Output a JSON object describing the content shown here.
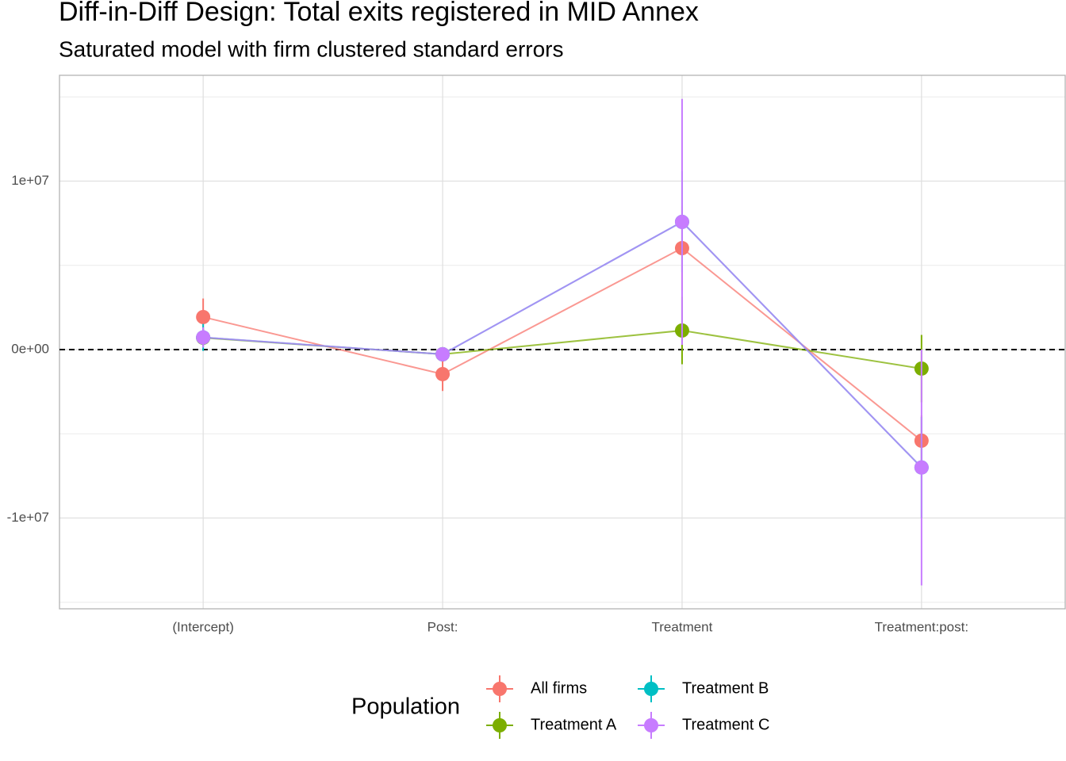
{
  "chart_data": {
    "type": "pointrange",
    "title": "Diff-in-Diff Design: Total exits registered in MID Annex",
    "subtitle": "Saturated model with firm clustered standard errors",
    "categories": [
      "(Intercept)",
      "Post:",
      "Treatment",
      "Treatment:post:"
    ],
    "series": [
      {
        "name": "All firms",
        "color": "#F8766D",
        "values": [
          1930000,
          -1460000,
          6020000,
          -5410000
        ],
        "errors": [
          1100000,
          1000000,
          2500000,
          1500000
        ]
      },
      {
        "name": "Treatment A",
        "color": "#7CAE00",
        "values": [
          700000,
          -280000,
          1130000,
          -1130000
        ],
        "errors": [
          500000,
          400000,
          2000000,
          2000000
        ]
      },
      {
        "name": "Treatment B",
        "color": "#00BFC4",
        "values": [
          720000,
          -280000,
          7580000,
          -7000000
        ],
        "errors": [
          800000,
          400000,
          3000000,
          3000000
        ]
      },
      {
        "name": "Treatment C",
        "color": "#C77CFF",
        "values": [
          720000,
          -280000,
          7580000,
          -7000000
        ],
        "errors": [
          600000,
          400000,
          7300000,
          7000000
        ]
      }
    ],
    "ylim": [
      -15390000,
      16280000
    ],
    "yticks": [
      {
        "value": -10000000,
        "label": "-1e+07"
      },
      {
        "value": 0,
        "label": "0e+00"
      },
      {
        "value": 10000000,
        "label": "1e+07"
      }
    ],
    "y_minor_ticks": [
      -15000000,
      -5000000,
      5000000,
      15000000
    ],
    "hline": 0,
    "grid": true,
    "legend_title": "Population",
    "legend_position": "bottom"
  }
}
